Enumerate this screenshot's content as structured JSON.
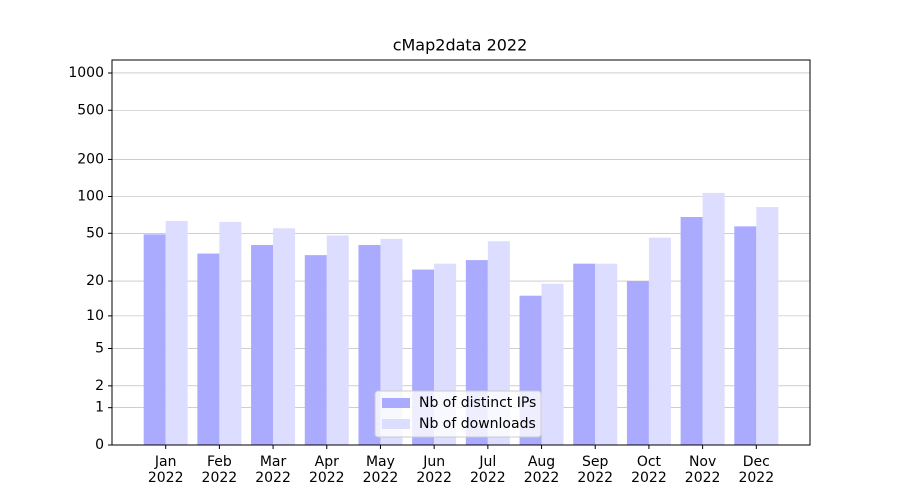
{
  "chart_data": {
    "type": "bar",
    "title": "cMap2data 2022",
    "categories": [
      "Jan\n2022",
      "Feb\n2022",
      "Mar\n2022",
      "Apr\n2022",
      "May\n2022",
      "Jun\n2022",
      "Jul\n2022",
      "Aug\n2022",
      "Sep\n2022",
      "Oct\n2022",
      "Nov\n2022",
      "Dec\n2022"
    ],
    "series": [
      {
        "name": "Nb of distinct IPs",
        "color": "#aaaaff",
        "values": [
          49,
          34,
          40,
          33,
          40,
          25,
          30,
          15,
          28,
          20,
          68,
          57
        ]
      },
      {
        "name": "Nb of downloads",
        "color": "#ddddff",
        "values": [
          63,
          62,
          55,
          48,
          45,
          28,
          43,
          19,
          28,
          46,
          107,
          82
        ]
      }
    ],
    "yscale": "log1p",
    "ylim": [
      0,
      1273
    ],
    "yticks": [
      0,
      1,
      2,
      5,
      10,
      20,
      50,
      100,
      200,
      500,
      1000
    ],
    "grid": true,
    "legend": "lower center"
  }
}
